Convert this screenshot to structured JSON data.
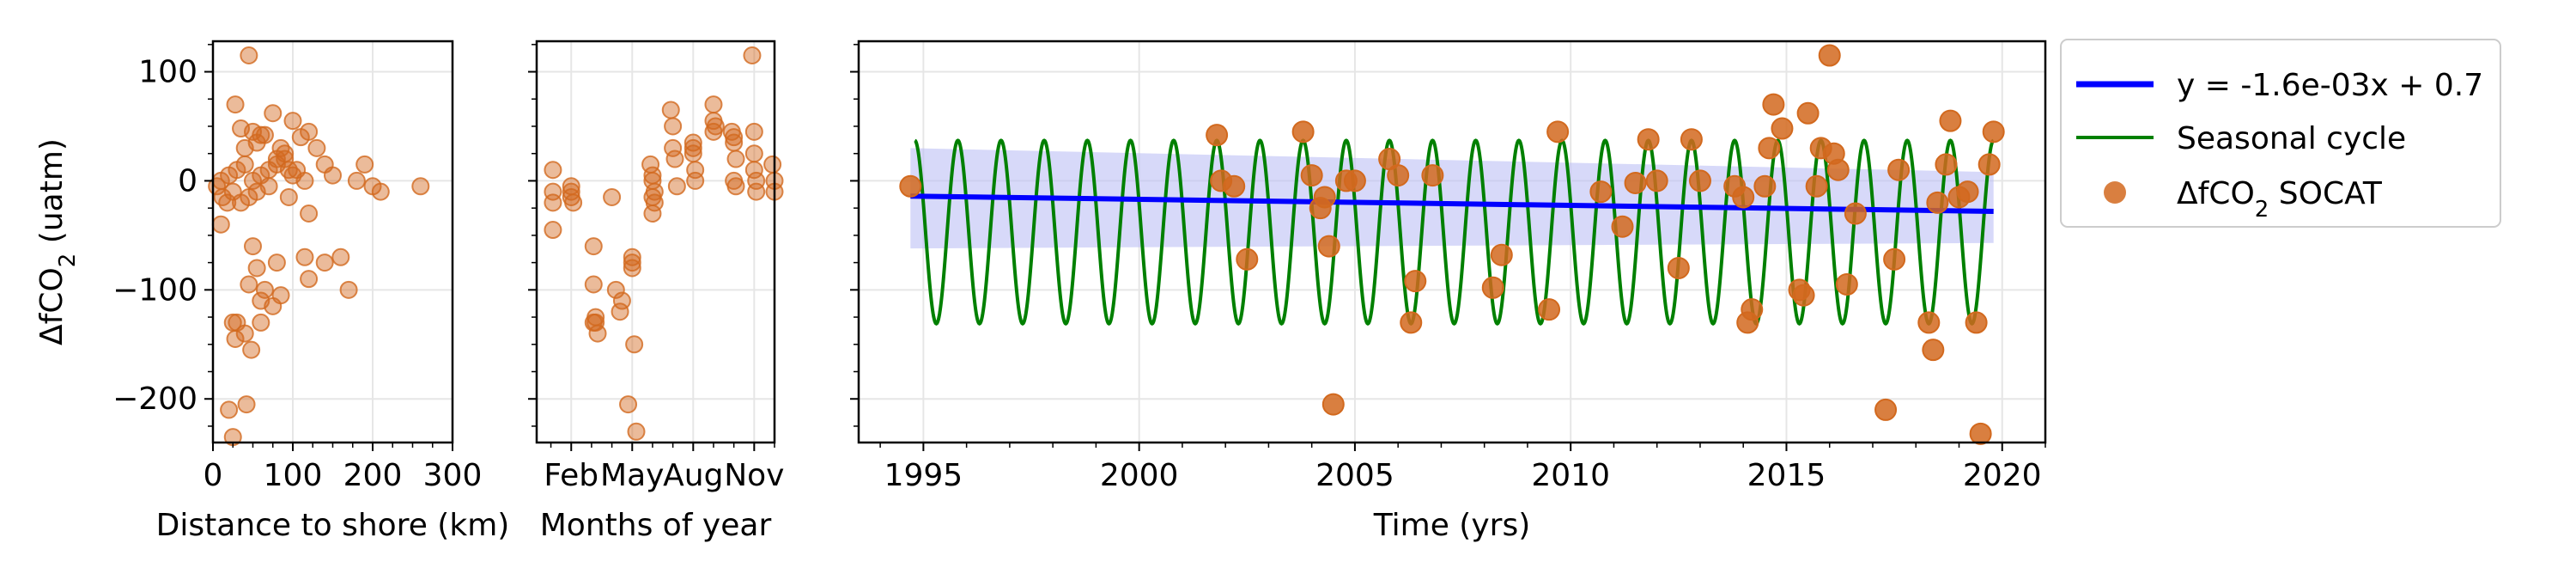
{
  "colors": {
    "point": "#d2691e",
    "trend": "#0000ff",
    "band": "#bcc0f5",
    "seasonal": "#008000",
    "grid": "#e6e6e6"
  },
  "chart_data": [
    {
      "type": "scatter",
      "xlabel": "Distance to shore (km)",
      "ylabel": "ΔfCO₂ (uatm)",
      "xlim": [
        0,
        300
      ],
      "ylim": [
        -240,
        128
      ],
      "xticks": [
        0,
        100,
        200,
        300
      ],
      "yticks": [
        100,
        0,
        -100,
        -200
      ],
      "tick_labels": {
        "x": [
          "0",
          "100",
          "200",
          "300"
        ],
        "y": [
          "100",
          "0",
          "−100",
          "−200"
        ]
      },
      "grid": true,
      "x": [
        45,
        28,
        60,
        75,
        85,
        100,
        120,
        35,
        50,
        65,
        90,
        110,
        130,
        40,
        55,
        80,
        95,
        140,
        190,
        10,
        20,
        30,
        40,
        50,
        60,
        70,
        80,
        90,
        100,
        105,
        115,
        150,
        180,
        200,
        210,
        260,
        5,
        12,
        18,
        25,
        35,
        45,
        55,
        70,
        95,
        120,
        10,
        50,
        80,
        115,
        140,
        160,
        55,
        45,
        65,
        85,
        120,
        170,
        75,
        60,
        30,
        25,
        60,
        40,
        28,
        48,
        42,
        20,
        25
      ],
      "y": [
        115,
        70,
        42,
        62,
        30,
        55,
        45,
        48,
        45,
        42,
        25,
        40,
        30,
        30,
        35,
        20,
        10,
        15,
        15,
        0,
        5,
        10,
        15,
        0,
        5,
        10,
        15,
        20,
        5,
        10,
        0,
        5,
        0,
        -5,
        -10,
        -5,
        -5,
        -15,
        -20,
        -10,
        -20,
        -15,
        -10,
        -5,
        -15,
        -30,
        -40,
        -60,
        -75,
        -70,
        -75,
        -70,
        -80,
        -95,
        -100,
        -105,
        -90,
        -100,
        -115,
        -110,
        -130,
        -130,
        -130,
        -140,
        -145,
        -155,
        -205,
        -210,
        -235
      ]
    },
    {
      "type": "scatter",
      "xlabel": "Months of year",
      "ylabel": "",
      "xlim": [
        0.3,
        12
      ],
      "ylim": [
        -240,
        128
      ],
      "xticks": [
        2,
        5,
        8,
        11
      ],
      "tick_labels": {
        "x": [
          "Feb",
          "May",
          "Aug",
          "Nov"
        ]
      },
      "grid": true,
      "x": [
        1.1,
        1.1,
        1.1,
        1.1,
        2.0,
        2.0,
        2.0,
        2.1,
        3.1,
        3.1,
        3.2,
        3.1,
        3.2,
        3.3,
        4.0,
        4.2,
        4.5,
        4.4,
        4.8,
        5.0,
        5.0,
        5.0,
        5.1,
        5.2,
        5.9,
        6.0,
        6.0,
        6.1,
        6.0,
        6.1,
        6.0,
        6.9,
        7.0,
        7.0,
        7.1,
        7.2,
        8.0,
        8.0,
        8.0,
        8.1,
        8.1,
        9.0,
        9.0,
        9.1,
        9.0,
        9.9,
        10.0,
        10.0,
        10.1,
        10.0,
        10.1,
        10.9,
        11.0,
        11.0,
        11.0,
        11.1,
        11.1,
        11.9,
        12.0,
        12.0
      ],
      "y": [
        10,
        -10,
        -20,
        -45,
        -5,
        -10,
        -15,
        -20,
        -60,
        -95,
        -130,
        -130,
        -125,
        -140,
        -15,
        -100,
        -110,
        -120,
        -205,
        -70,
        -75,
        -80,
        -150,
        -230,
        15,
        5,
        0,
        -10,
        -15,
        -20,
        -30,
        65,
        50,
        30,
        20,
        -5,
        35,
        30,
        25,
        10,
        0,
        70,
        55,
        50,
        45,
        45,
        40,
        35,
        20,
        0,
        -5,
        115,
        45,
        25,
        10,
        0,
        -10,
        15,
        0,
        -10
      ]
    },
    {
      "type": "line",
      "xlabel": "Time (yrs)",
      "ylabel": "",
      "xlim": [
        1993.5,
        2021
      ],
      "ylim": [
        -240,
        128
      ],
      "xticks": [
        1995,
        2000,
        2005,
        2010,
        2015,
        2020
      ],
      "tick_labels": {
        "x": [
          "1995",
          "2000",
          "2005",
          "2010",
          "2015",
          "2020"
        ]
      },
      "grid": true,
      "legend": "outside-right",
      "trend": {
        "x": [
          1994.7,
          2019.8
        ],
        "y": [
          -14,
          -28
        ]
      },
      "band": {
        "x": [
          1994.7,
          2019.8
        ],
        "upper": [
          30,
          8
        ],
        "lower": [
          -62,
          -57
        ]
      },
      "seasonal": {
        "x_start": 1994.8,
        "x_end": 2019.8,
        "amplitude": 84,
        "offset": -47,
        "phase": 1994.8
      },
      "series": [
        {
          "name": "y = -1.6e-03x + 0.7",
          "kind": "line"
        },
        {
          "name": "Seasonal cycle",
          "kind": "line"
        },
        {
          "name": "ΔfCO₂ SOCAT",
          "kind": "scatter",
          "x": [
            1994.7,
            2001.8,
            2001.9,
            2002.2,
            2002.5,
            2003.8,
            2004.0,
            2004.2,
            2004.3,
            2004.4,
            2004.5,
            2004.8,
            2005.0,
            2005.8,
            2006.0,
            2006.3,
            2006.4,
            2006.8,
            2008.2,
            2008.4,
            2009.5,
            2009.7,
            2010.7,
            2011.2,
            2011.5,
            2011.8,
            2012.0,
            2012.5,
            2012.8,
            2013.0,
            2013.8,
            2014.0,
            2014.1,
            2014.2,
            2014.5,
            2014.6,
            2014.7,
            2014.9,
            2015.3,
            2015.4,
            2015.5,
            2015.7,
            2015.8,
            2016.0,
            2016.1,
            2016.2,
            2016.4,
            2016.6,
            2017.3,
            2017.5,
            2017.6,
            2018.3,
            2018.4,
            2018.5,
            2018.7,
            2018.8,
            2019.0,
            2019.2,
            2019.4,
            2019.5,
            2019.7,
            2019.8
          ],
          "y": [
            -5,
            42,
            0,
            -5,
            -72,
            45,
            5,
            -25,
            -15,
            -60,
            -205,
            0,
            0,
            20,
            5,
            -130,
            -92,
            5,
            -98,
            -68,
            -118,
            45,
            -10,
            -42,
            -2,
            38,
            0,
            -80,
            38,
            0,
            -5,
            -15,
            -130,
            -118,
            -5,
            30,
            70,
            48,
            -100,
            -105,
            62,
            -5,
            30,
            115,
            25,
            10,
            -95,
            -30,
            -210,
            -72,
            10,
            -130,
            -155,
            -20,
            15,
            55,
            -15,
            -10,
            -130,
            -232,
            15,
            45
          ]
        }
      ]
    }
  ],
  "legend": {
    "items": [
      "y = -1.6e-03x + 0.7",
      "Seasonal cycle",
      "ΔfCO₂ SOCAT"
    ]
  }
}
